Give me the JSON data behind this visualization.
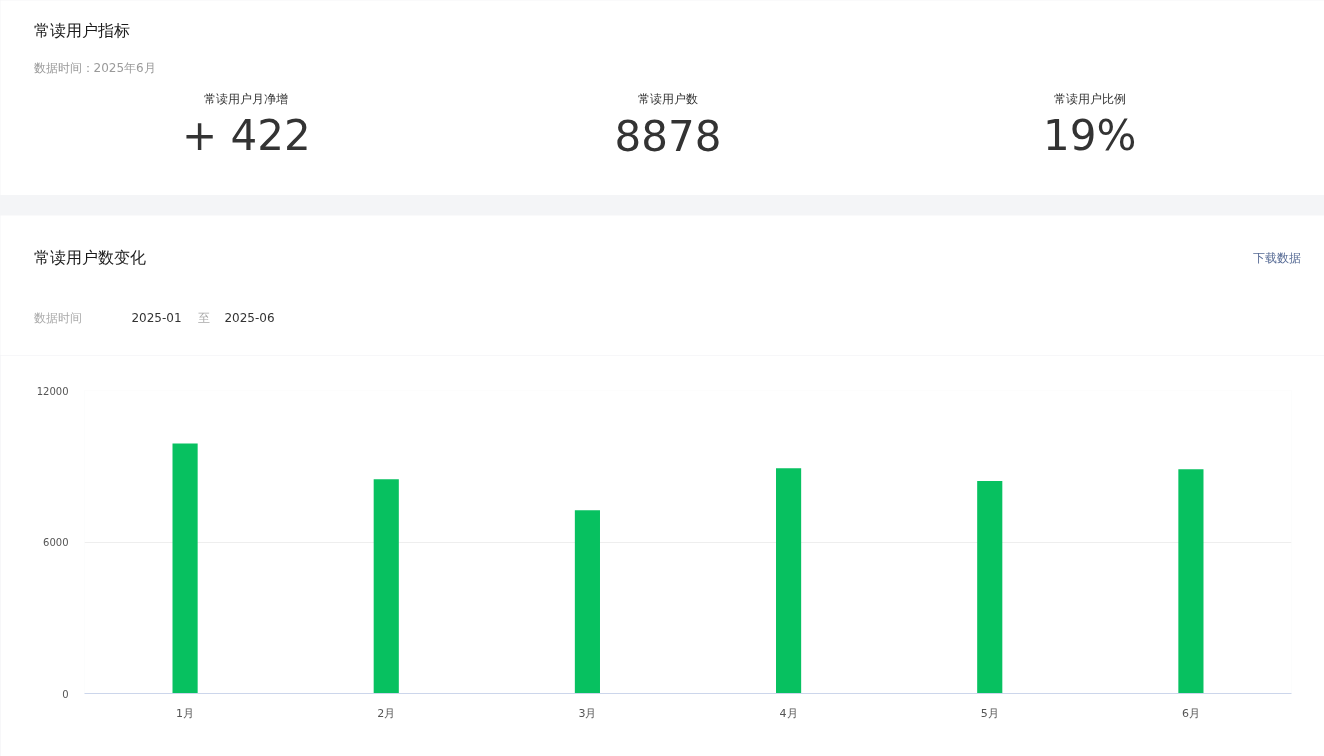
{
  "chart_data": [
    {
      "type": "other",
      "title": "常读用户指标",
      "subtitle": "数据时间：2025年6月",
      "annotations": [
        "常读用户月净增",
        "+ 422",
        "常读用户数",
        "8878",
        "常读用户比例",
        "19%"
      ]
    },
    {
      "type": "bar",
      "title": "常读用户数变化",
      "annotations": [
        "下载数据",
        "数据时间",
        "2025-01",
        "至",
        "2025-06"
      ],
      "categories": [
        "1月",
        "2月",
        "3月",
        "4月",
        "5月",
        "6月"
      ],
      "values": [
        9900,
        8490,
        7260,
        8920,
        8420,
        8880
      ],
      "color": "#07c160",
      "ylim": [
        0,
        12000
      ],
      "yticks": [
        0,
        6000,
        12000
      ],
      "grid": "y"
    }
  ]
}
